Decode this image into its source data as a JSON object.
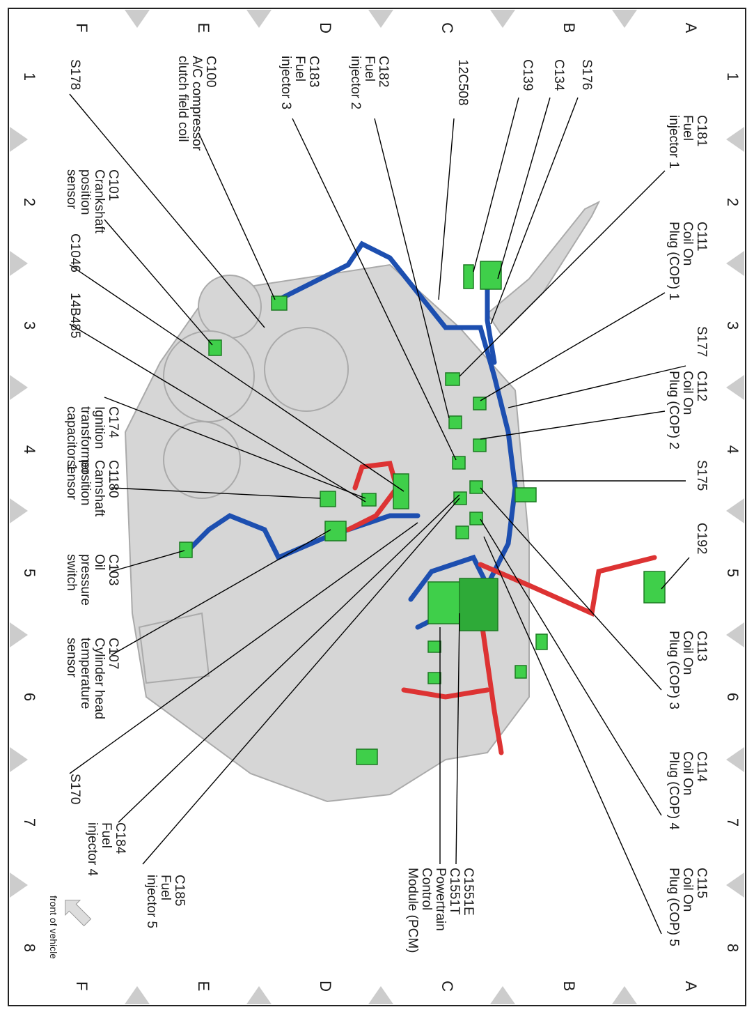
{
  "grid": {
    "columns": [
      "A",
      "B",
      "C",
      "D",
      "E",
      "F"
    ],
    "rows": [
      "1",
      "2",
      "3",
      "4",
      "5",
      "6",
      "7",
      "8"
    ]
  },
  "labels": [
    {
      "lines": [
        "C181",
        "Fuel",
        "injector 1"
      ]
    },
    {
      "lines": [
        "C111",
        "Coil On",
        "Plug (COP) 1"
      ]
    },
    {
      "lines": [
        "S177"
      ]
    },
    {
      "lines": [
        "C112",
        "Coil On",
        "Plug (COP) 2"
      ]
    },
    {
      "lines": [
        "S175"
      ]
    },
    {
      "lines": [
        "C192"
      ]
    },
    {
      "lines": [
        "C113",
        "Coil On",
        "Plug (COP) 3"
      ]
    },
    {
      "lines": [
        "C114",
        "Coil On",
        "Plug (COP) 4"
      ]
    },
    {
      "lines": [
        "C115",
        "Coil On",
        "Plug (COP) 5"
      ]
    },
    {
      "lines": [
        "C1551E",
        "C1551T",
        "Powertrain",
        "Control",
        "Module (PCM)"
      ]
    },
    {
      "lines": [
        "S176"
      ]
    },
    {
      "lines": [
        "C134"
      ]
    },
    {
      "lines": [
        "C139"
      ]
    },
    {
      "lines": [
        "12C508"
      ]
    },
    {
      "lines": [
        "C182",
        "Fuel",
        "injector 2"
      ]
    },
    {
      "lines": [
        "C183",
        "Fuel",
        "injector 3"
      ]
    },
    {
      "lines": [
        "C100",
        "A/C compressor",
        "clutch field coil"
      ]
    },
    {
      "lines": [
        "S178"
      ]
    },
    {
      "lines": [
        "C101",
        "Crankshaft",
        "position",
        "sensor"
      ]
    },
    {
      "lines": [
        "C1046"
      ]
    },
    {
      "lines": [
        "14B485"
      ]
    },
    {
      "lines": [
        "C174",
        "Ignition",
        "transformer",
        "capacitor 1"
      ]
    },
    {
      "lines": [
        "C1180",
        "Camshaft",
        "position",
        "sensor"
      ]
    },
    {
      "lines": [
        "C103",
        "Oil",
        "pressure",
        "switch"
      ]
    },
    {
      "lines": [
        "C107",
        "Cylinder head",
        "temperature",
        "sensor"
      ]
    },
    {
      "lines": [
        "S170"
      ]
    },
    {
      "lines": [
        "C184",
        "Fuel",
        "injector 4"
      ]
    },
    {
      "lines": [
        "C185",
        "Fuel",
        "injector 5"
      ]
    }
  ],
  "footer": "front of vehicle"
}
